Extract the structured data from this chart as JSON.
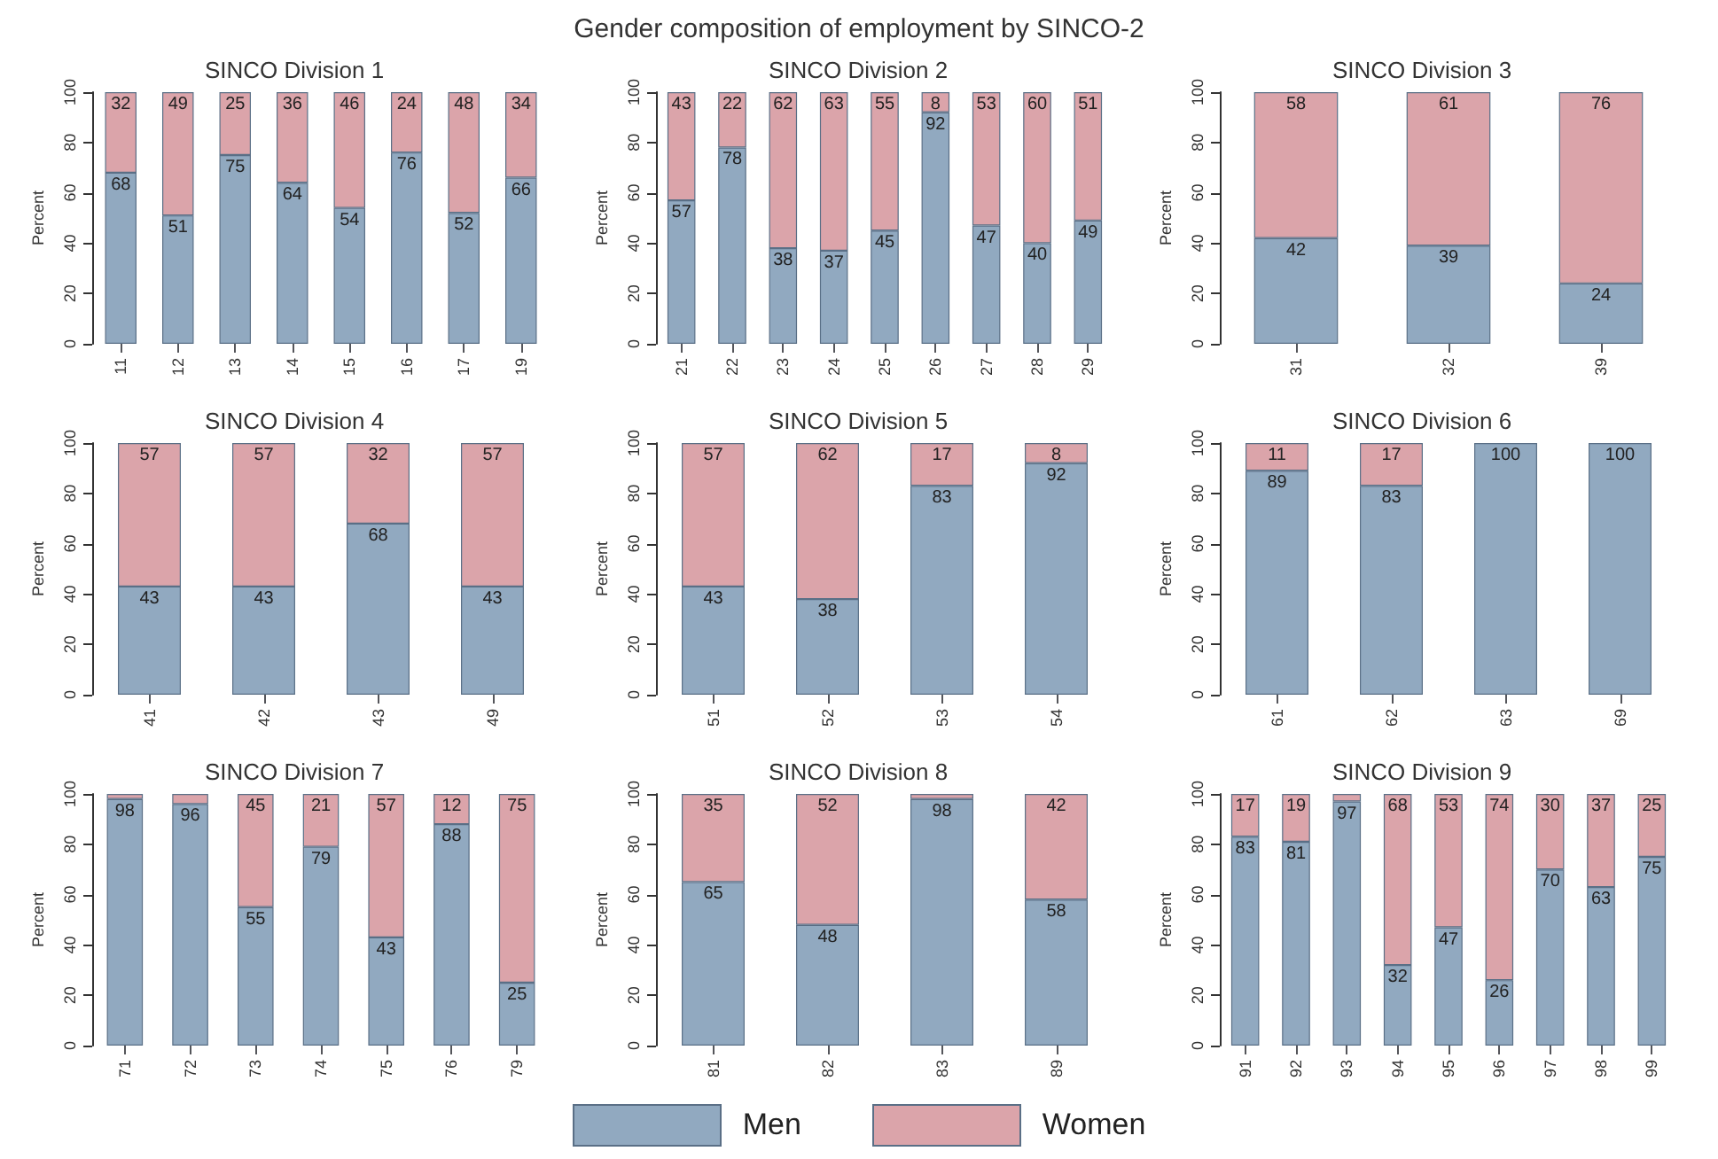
{
  "chart_data": [
    {
      "type": "bar",
      "stacked": true,
      "title": "SINCO Division 1",
      "ylabel": "Percent",
      "ylim": [
        0,
        100
      ],
      "yticks": [
        0,
        20,
        40,
        60,
        80,
        100
      ],
      "legend": "bottom",
      "annotations": [
        "Gender composition of employment by SINCO-2"
      ],
      "categories": [
        "11",
        "12",
        "13",
        "14",
        "15",
        "16",
        "17",
        "19"
      ],
      "series": [
        {
          "name": "Men",
          "color": "#91a9c0",
          "values": [
            68,
            51,
            75,
            64,
            54,
            76,
            52,
            66
          ],
          "value_labels": [
            "68",
            "51",
            "75",
            "64",
            "54",
            "76",
            "52",
            "66"
          ]
        },
        {
          "name": "Women",
          "color": "#dba4aa",
          "values": [
            32,
            49,
            25,
            36,
            46,
            24,
            48,
            34
          ],
          "value_labels": [
            "32",
            "49",
            "25",
            "36",
            "46",
            "24",
            "48",
            "34"
          ]
        }
      ]
    },
    {
      "type": "bar",
      "stacked": true,
      "title": "SINCO Division 2",
      "ylabel": "Percent",
      "ylim": [
        0,
        100
      ],
      "yticks": [
        0,
        20,
        40,
        60,
        80,
        100
      ],
      "categories": [
        "21",
        "22",
        "23",
        "24",
        "25",
        "26",
        "27",
        "28",
        "29"
      ],
      "series": [
        {
          "color": "#91a9c0",
          "values": [
            57,
            78,
            38,
            37,
            45,
            92,
            47,
            40,
            49
          ],
          "value_labels": [
            "57",
            "78",
            "38",
            "37",
            "45",
            "92",
            "47",
            "40",
            "49"
          ]
        },
        {
          "color": "#dba4aa",
          "values": [
            43,
            22,
            62,
            63,
            55,
            8,
            53,
            60,
            51
          ],
          "value_labels": [
            "43",
            "22",
            "62",
            "63",
            "55",
            "8",
            "53",
            "60",
            "51"
          ]
        }
      ]
    },
    {
      "type": "bar",
      "stacked": true,
      "title": "SINCO Division 3",
      "ylabel": "Percent",
      "ylim": [
        0,
        100
      ],
      "yticks": [
        0,
        20,
        40,
        60,
        80,
        100
      ],
      "categories": [
        "31",
        "32",
        "39"
      ],
      "series": [
        {
          "color": "#91a9c0",
          "values": [
            42,
            39,
            24
          ],
          "value_labels": [
            "42",
            "39",
            "24"
          ]
        },
        {
          "color": "#dba4aa",
          "values": [
            58,
            61,
            76
          ],
          "value_labels": [
            "58",
            "61",
            "76"
          ]
        }
      ]
    },
    {
      "type": "bar",
      "stacked": true,
      "title": "SINCO Division 4",
      "ylabel": "Percent",
      "ylim": [
        0,
        100
      ],
      "yticks": [
        0,
        20,
        40,
        60,
        80,
        100
      ],
      "categories": [
        "41",
        "42",
        "43",
        "49"
      ],
      "series": [
        {
          "color": "#91a9c0",
          "values": [
            43,
            43,
            68,
            43
          ],
          "value_labels": [
            "43",
            "43",
            "68",
            "43"
          ]
        },
        {
          "color": "#dba4aa",
          "values": [
            57,
            57,
            32,
            57
          ],
          "value_labels": [
            "57",
            "57",
            "32",
            "57"
          ]
        }
      ]
    },
    {
      "type": "bar",
      "stacked": true,
      "title": "SINCO Division 5",
      "ylabel": "Percent",
      "ylim": [
        0,
        100
      ],
      "yticks": [
        0,
        20,
        40,
        60,
        80,
        100
      ],
      "categories": [
        "51",
        "52",
        "53",
        "54"
      ],
      "series": [
        {
          "color": "#91a9c0",
          "values": [
            43,
            38,
            83,
            92
          ],
          "value_labels": [
            "43",
            "38",
            "83",
            "92"
          ]
        },
        {
          "color": "#dba4aa",
          "values": [
            57,
            62,
            17,
            8
          ],
          "value_labels": [
            "57",
            "62",
            "17",
            "8"
          ]
        }
      ]
    },
    {
      "type": "bar",
      "stacked": true,
      "title": "SINCO Division 6",
      "ylabel": "Percent",
      "ylim": [
        0,
        100
      ],
      "yticks": [
        0,
        20,
        40,
        60,
        80,
        100
      ],
      "categories": [
        "61",
        "62",
        "63",
        "69"
      ],
      "series": [
        {
          "color": "#91a9c0",
          "values": [
            89,
            83,
            100,
            100
          ],
          "value_labels": [
            "89",
            "83",
            "100",
            "100"
          ]
        },
        {
          "color": "#dba4aa",
          "values": [
            11,
            17,
            0,
            0
          ],
          "value_labels": [
            "11",
            "17",
            null,
            null
          ]
        }
      ]
    },
    {
      "type": "bar",
      "stacked": true,
      "title": "SINCO Division 7",
      "ylabel": "Percent",
      "ylim": [
        0,
        100
      ],
      "yticks": [
        0,
        20,
        40,
        60,
        80,
        100
      ],
      "categories": [
        "71",
        "72",
        "73",
        "74",
        "75",
        "76",
        "79"
      ],
      "series": [
        {
          "color": "#91a9c0",
          "values": [
            98,
            96,
            55,
            79,
            43,
            88,
            25
          ],
          "value_labels": [
            "98",
            "96",
            "55",
            "79",
            "43",
            "88",
            "25"
          ]
        },
        {
          "color": "#dba4aa",
          "values": [
            2,
            4,
            45,
            21,
            57,
            12,
            75
          ],
          "value_labels": [
            null,
            null,
            "45",
            "21",
            "57",
            "12",
            "75"
          ]
        }
      ]
    },
    {
      "type": "bar",
      "stacked": true,
      "title": "SINCO Division 8",
      "ylabel": "Percent",
      "ylim": [
        0,
        100
      ],
      "yticks": [
        0,
        20,
        40,
        60,
        80,
        100
      ],
      "categories": [
        "81",
        "82",
        "83",
        "89"
      ],
      "series": [
        {
          "color": "#91a9c0",
          "values": [
            65,
            48,
            98,
            58
          ],
          "value_labels": [
            "65",
            "48",
            "98",
            "58"
          ]
        },
        {
          "color": "#dba4aa",
          "values": [
            35,
            52,
            2,
            42
          ],
          "value_labels": [
            "35",
            "52",
            null,
            "42"
          ]
        }
      ]
    },
    {
      "type": "bar",
      "stacked": true,
      "title": "SINCO Division 9",
      "ylabel": "Percent",
      "ylim": [
        0,
        100
      ],
      "yticks": [
        0,
        20,
        40,
        60,
        80,
        100
      ],
      "categories": [
        "91",
        "92",
        "93",
        "94",
        "95",
        "96",
        "97",
        "98",
        "99"
      ],
      "series": [
        {
          "color": "#91a9c0",
          "values": [
            83,
            81,
            97,
            32,
            47,
            26,
            70,
            63,
            75
          ],
          "value_labels": [
            "83",
            "81",
            "97",
            "32",
            "47",
            "26",
            "70",
            "63",
            "75"
          ]
        },
        {
          "color": "#dba4aa",
          "values": [
            17,
            19,
            3,
            68,
            53,
            74,
            30,
            37,
            25
          ],
          "value_labels": [
            "17",
            "19",
            null,
            "68",
            "53",
            "74",
            "30",
            "37",
            "25"
          ]
        }
      ]
    }
  ]
}
